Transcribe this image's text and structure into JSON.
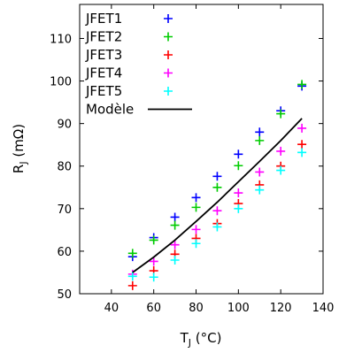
{
  "chart_data": {
    "type": "scatter",
    "xlabel": "T_J (°C)",
    "xlabel_main": "T",
    "xlabel_sub": "J",
    "xlabel_unit": " (°C)",
    "ylabel": "R_J (mΩ)",
    "ylabel_main": "R",
    "ylabel_sub": "J",
    "ylabel_unit": " (mΩ)",
    "xlim": [
      25,
      140
    ],
    "ylim": [
      50,
      118
    ],
    "xticks": [
      40,
      60,
      80,
      100,
      120,
      140
    ],
    "yticks": [
      50,
      60,
      70,
      80,
      90,
      100,
      110
    ],
    "grid": false,
    "legend_position": "top-left",
    "series": [
      {
        "name": "JFET1",
        "color": "#0000ff",
        "marker": "plus",
        "x": [
          50,
          60,
          70,
          80,
          90,
          100,
          110,
          120,
          130
        ],
        "y": [
          58.7,
          63.2,
          68.0,
          72.6,
          77.6,
          82.8,
          88.0,
          93.0,
          98.8
        ]
      },
      {
        "name": "JFET2",
        "color": "#00cc00",
        "marker": "plus",
        "x": [
          50,
          60,
          70,
          80,
          90,
          100,
          110,
          120,
          130
        ],
        "y": [
          59.5,
          62.6,
          66.1,
          70.3,
          75.0,
          80.1,
          86.0,
          92.3,
          99.2
        ]
      },
      {
        "name": "JFET3",
        "color": "#ff0000",
        "marker": "plus",
        "x": [
          50,
          60,
          70,
          80,
          90,
          100,
          110,
          120,
          130
        ],
        "y": [
          51.9,
          55.4,
          59.3,
          63.0,
          66.5,
          71.2,
          75.6,
          80.0,
          85.1
        ]
      },
      {
        "name": "JFET4",
        "color": "#ff00ff",
        "marker": "plus",
        "x": [
          50,
          60,
          70,
          80,
          90,
          100,
          110,
          120,
          130
        ],
        "y": [
          54.6,
          57.6,
          61.5,
          65.1,
          69.5,
          73.7,
          78.6,
          83.5,
          88.9
        ]
      },
      {
        "name": "JFET5",
        "color": "#00ffff",
        "marker": "plus",
        "x": [
          50,
          60,
          70,
          80,
          90,
          100,
          110,
          120,
          130
        ],
        "y": [
          54.1,
          53.9,
          57.9,
          61.8,
          65.7,
          70.0,
          74.4,
          79.0,
          83.2
        ]
      },
      {
        "name": "Modèle",
        "color": "#000000",
        "marker": "line",
        "x": [
          50,
          60,
          70,
          80,
          90,
          100,
          110,
          120,
          130
        ],
        "y": [
          55.0,
          58.6,
          62.6,
          67.0,
          71.5,
          76.3,
          81.1,
          86.0,
          91.2
        ]
      }
    ]
  }
}
